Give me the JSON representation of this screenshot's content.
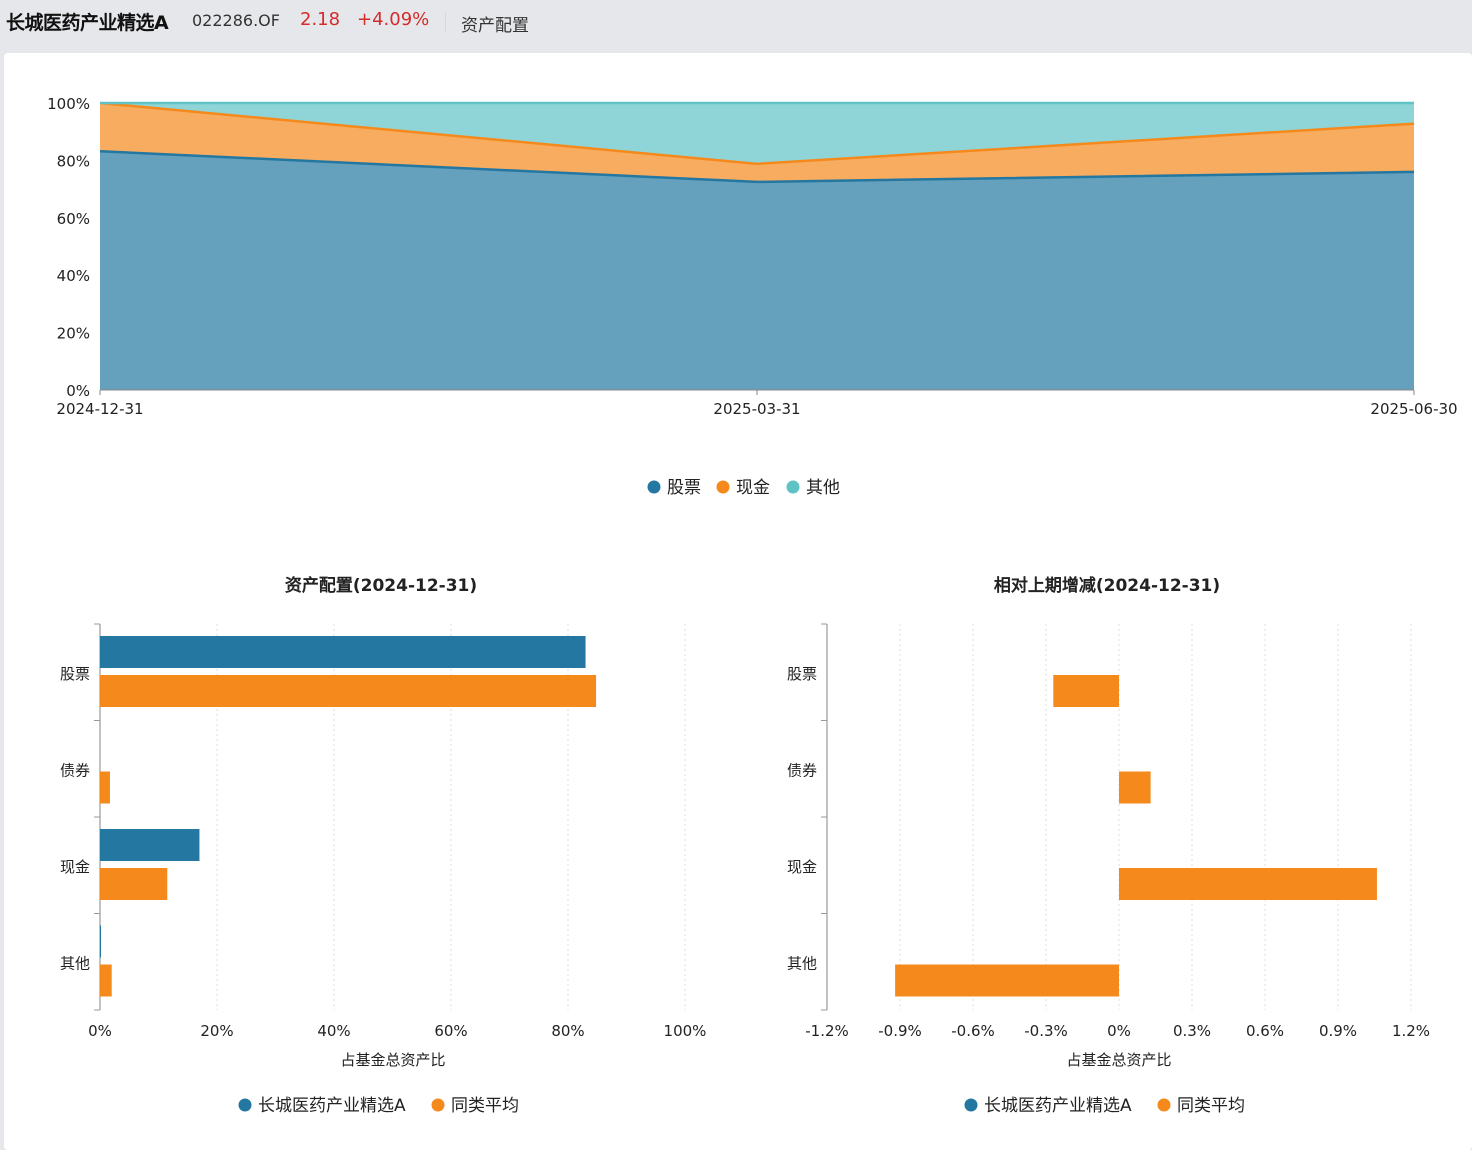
{
  "header": {
    "fund_name": "长城医药产业精选A",
    "fund_code": "022286.OF",
    "nav": "2.18",
    "change": "+4.09%",
    "tab": "资产配置"
  },
  "colors": {
    "blue": "#2477a1",
    "orange": "#f5891c",
    "teal": "#5fc3c6",
    "up": "#d42b2b"
  },
  "chart_data": [
    {
      "type": "area",
      "stacked": true,
      "x": [
        "2024-12-31",
        "2025-03-31",
        "2025-06-30"
      ],
      "ylim": [
        0,
        100
      ],
      "y_ticks": [
        "0%",
        "20%",
        "40%",
        "60%",
        "80%",
        "100%"
      ],
      "series": [
        {
          "name": "股票",
          "values": [
            83.2,
            72.5,
            76.0
          ],
          "color": "#2477a1"
        },
        {
          "name": "现金",
          "values": [
            16.8,
            6.3,
            16.8
          ],
          "color": "#f5891c"
        },
        {
          "name": "其他",
          "values": [
            0.0,
            21.2,
            7.2
          ],
          "color": "#5fc3c6"
        }
      ],
      "legend": [
        "股票",
        "现金",
        "其他"
      ],
      "legend_position": "bottom-center"
    },
    {
      "type": "bar",
      "orientation": "horizontal",
      "title": "资产配置(2024-12-31)",
      "categories": [
        "股票",
        "债券",
        "现金",
        "其他"
      ],
      "xlabel": "占基金总资产比",
      "xlim": [
        0,
        100
      ],
      "x_ticks": [
        "0%",
        "20%",
        "40%",
        "60%",
        "80%",
        "100%"
      ],
      "series": [
        {
          "name": "长城医药产业精选A",
          "values": [
            83.0,
            0,
            17.0,
            0.1
          ],
          "color": "#2477a1"
        },
        {
          "name": "同类平均",
          "values": [
            84.8,
            1.7,
            11.5,
            2.0
          ],
          "color": "#f5891c"
        }
      ],
      "legend": [
        "长城医药产业精选A",
        "同类平均"
      ],
      "legend_position": "bottom-center"
    },
    {
      "type": "bar",
      "orientation": "horizontal",
      "title": "相对上期增减(2024-12-31)",
      "categories": [
        "股票",
        "债券",
        "现金",
        "其他"
      ],
      "xlabel": "占基金总资产比",
      "xlim": [
        -1.2,
        1.2
      ],
      "x_ticks": [
        "-1.2%",
        "-0.9%",
        "-0.6%",
        "-0.3%",
        "0%",
        "0.3%",
        "0.6%",
        "0.9%",
        "1.2%"
      ],
      "series": [
        {
          "name": "长城医药产业精选A",
          "values": [
            0,
            0,
            0,
            0
          ],
          "color": "#2477a1"
        },
        {
          "name": "同类平均",
          "values": [
            -0.27,
            0.13,
            1.06,
            -0.92
          ],
          "color": "#f5891c"
        }
      ],
      "legend": [
        "长城医药产业精选A",
        "同类平均"
      ],
      "legend_position": "bottom-center"
    }
  ]
}
